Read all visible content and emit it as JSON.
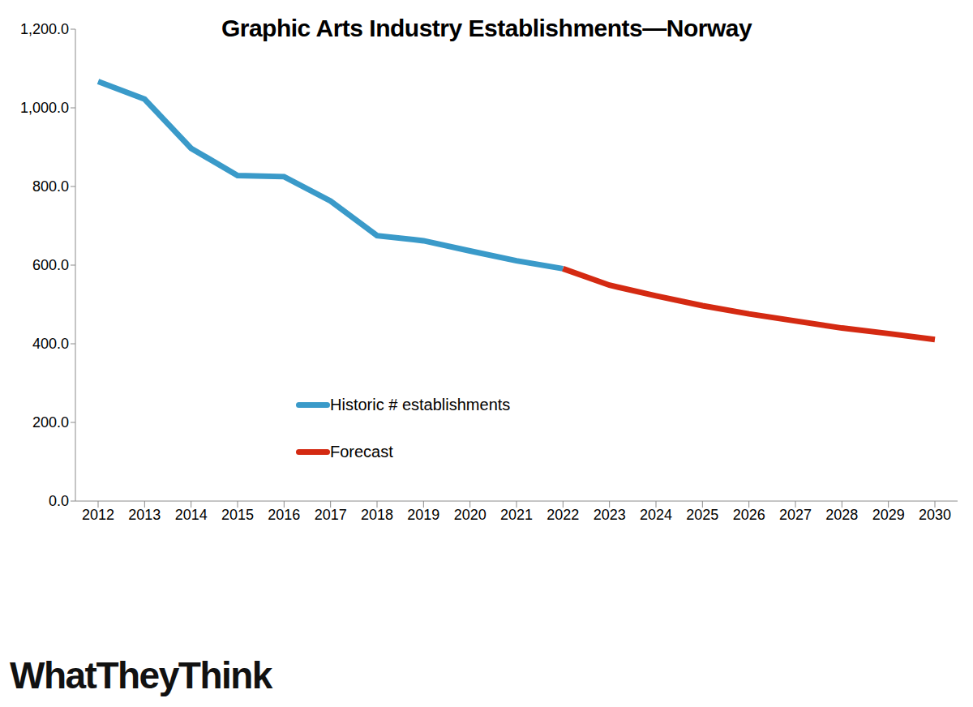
{
  "chart_data": {
    "type": "line",
    "title": "Graphic Arts Industry Establishments—Norway",
    "annotations": [
      "WhatTheyThink"
    ],
    "categories": [
      "2012",
      "2013",
      "2014",
      "2015",
      "2016",
      "2017",
      "2018",
      "2019",
      "2020",
      "2021",
      "2022",
      "2023",
      "2024",
      "2025",
      "2026",
      "2027",
      "2028",
      "2029",
      "2030"
    ],
    "series": [
      {
        "name": "Historic # establishments",
        "color": "#3a9ac9",
        "values": [
          1067,
          1022,
          897,
          828,
          825,
          763,
          675,
          662,
          636,
          611,
          591,
          null,
          null,
          null,
          null,
          null,
          null,
          null,
          null
        ]
      },
      {
        "name": "Forecast",
        "color": "#d42a12",
        "values": [
          null,
          null,
          null,
          null,
          null,
          null,
          null,
          null,
          null,
          null,
          591,
          549,
          522,
          497,
          476,
          458,
          440,
          426,
          411
        ]
      }
    ],
    "ylim": [
      0,
      1200
    ],
    "yticks": [
      {
        "value": 0,
        "label": "0.0"
      },
      {
        "value": 200,
        "label": "200.0"
      },
      {
        "value": 400,
        "label": "400.0"
      },
      {
        "value": 600,
        "label": "600.0"
      },
      {
        "value": 800,
        "label": "800.0"
      },
      {
        "value": 1000,
        "label": "1,000.0"
      },
      {
        "value": 1200,
        "label": "1,200.0"
      }
    ],
    "grid": false,
    "legend": "center"
  }
}
